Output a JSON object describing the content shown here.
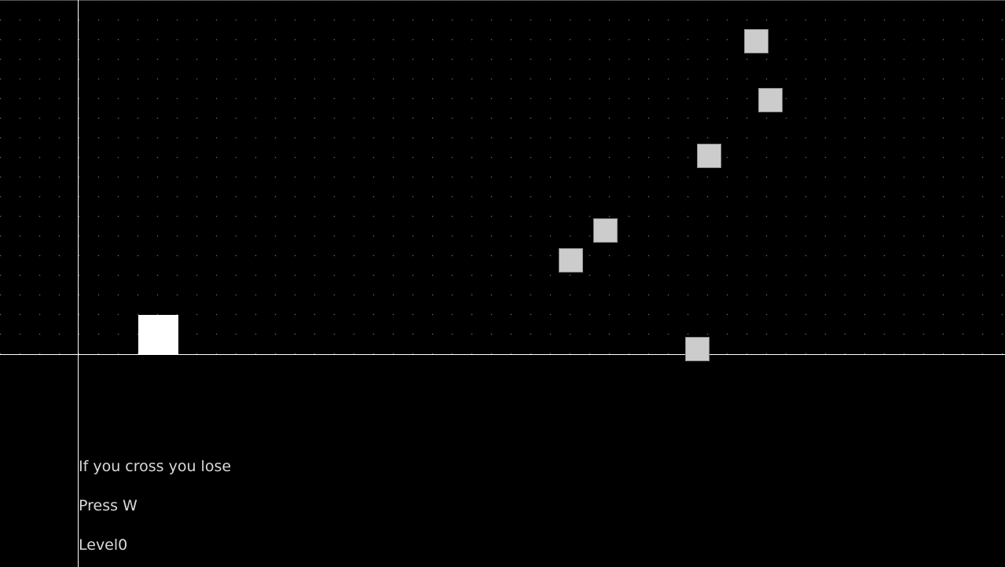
{
  "colors": {
    "background": "#000000",
    "grid_dots": "#6a6a6a",
    "lines": "#ffffff",
    "player": "#ffffff",
    "obstacle_fill": "#cccccc",
    "hud_text": "#d9d9d9"
  },
  "hud": {
    "warning": "If you cross you lose",
    "instruction": "Press W",
    "level_label": "Level",
    "level_value": "0"
  },
  "scene": {
    "player_shape": "white-square",
    "obstacle_shape": "gray-square",
    "obstacle_count": 6
  }
}
